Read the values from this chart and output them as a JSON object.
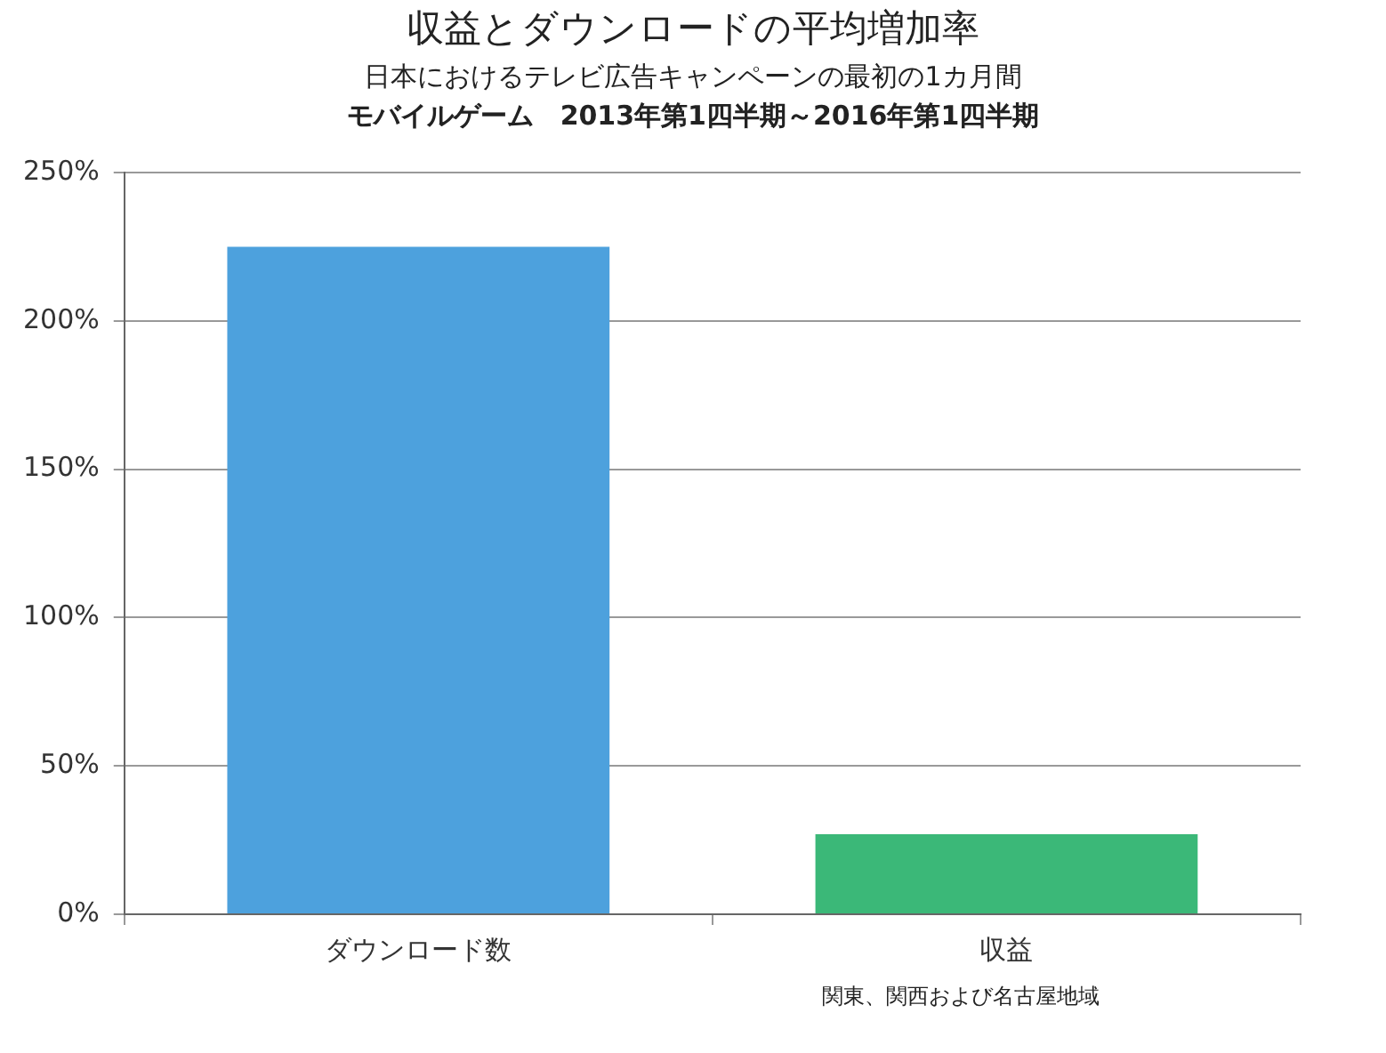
{
  "chart_data": {
    "type": "bar",
    "title": "収益とダウンロードの平均増加率",
    "subtitle": "日本におけるテレビ広告キャンペーンの最初の1カ月間",
    "categories": [
      "ダウンロード数",
      "収益"
    ],
    "values": [
      225,
      27
    ],
    "colors": [
      "#4da1dd",
      "#3bb878"
    ],
    "ylim": [
      0,
      250
    ],
    "yticks": [
      {
        "value": 0,
        "label": "0%"
      },
      {
        "value": 50,
        "label": "50%"
      },
      {
        "value": 100,
        "label": "100%"
      },
      {
        "value": 150,
        "label": "150%"
      },
      {
        "value": 200,
        "label": "200%"
      },
      {
        "value": 250,
        "label": "250%"
      }
    ],
    "grid": "y",
    "annotations": [
      "モバイルゲーム　2013年第1四半期～2016年第1四半期",
      "関東、関西および名古屋地域"
    ]
  }
}
